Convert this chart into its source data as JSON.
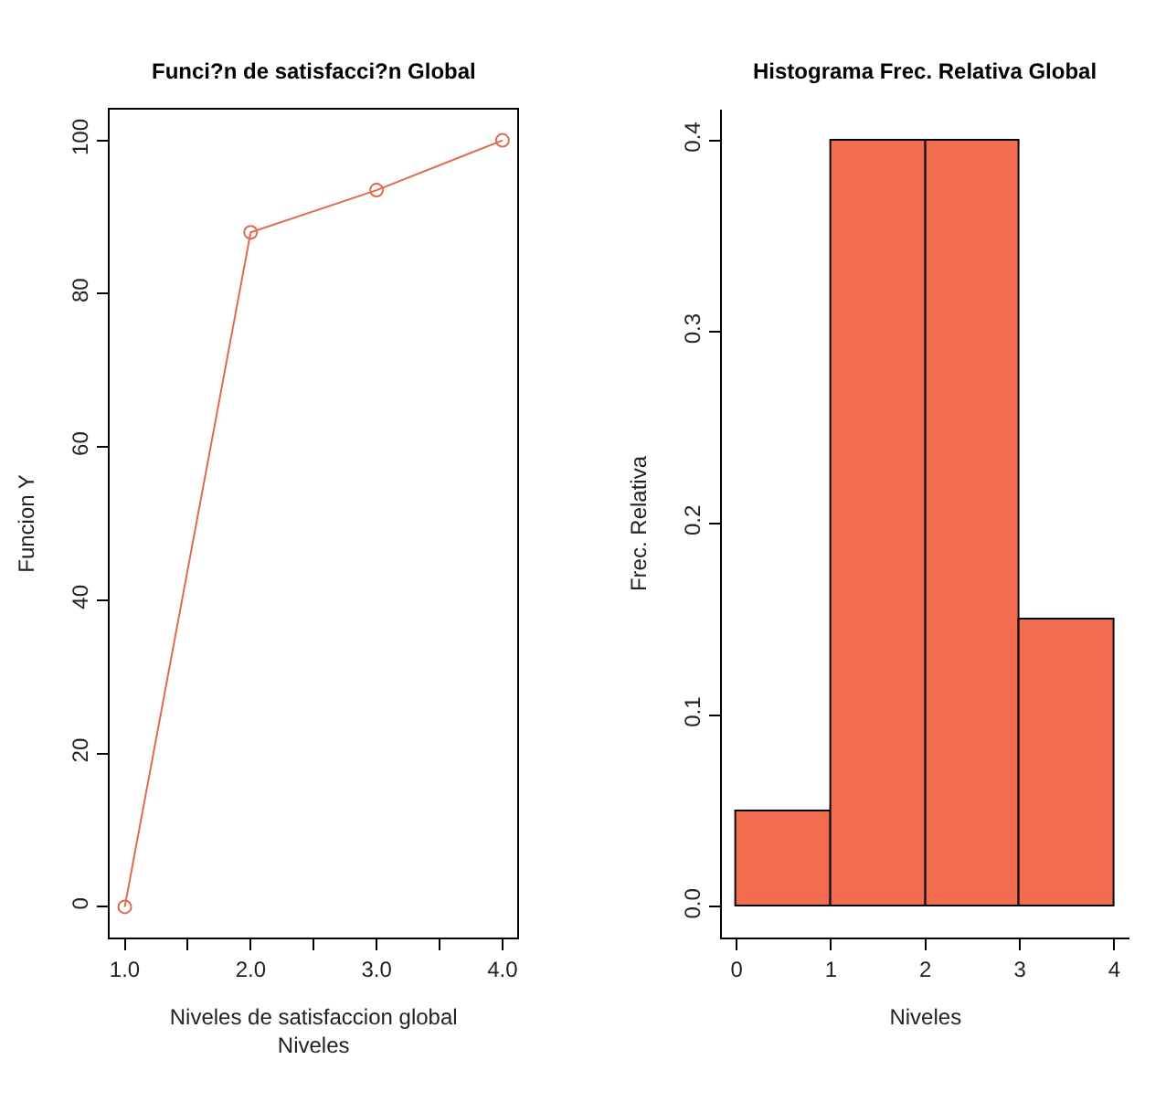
{
  "chart_data": [
    {
      "type": "line",
      "title": "Funci?n de satisfacci?n Global",
      "xlabel": "Niveles de satisfaccion global\nNiveles",
      "ylabel": "Funcion Y",
      "x": [
        1,
        2,
        3,
        4
      ],
      "series": [
        {
          "color": "#e0694f",
          "values": [
            0,
            88,
            93.5,
            100
          ]
        }
      ],
      "marker": "circle",
      "xlim": [
        0.88,
        4.12
      ],
      "xticks": [
        {
          "value": 1,
          "label": "1.0"
        },
        {
          "value": 1.5,
          "label": null
        },
        {
          "value": 2,
          "label": "2.0"
        },
        {
          "value": 2.5,
          "label": null
        },
        {
          "value": 3,
          "label": "3.0"
        },
        {
          "value": 3.5,
          "label": null
        },
        {
          "value": 4,
          "label": "4.0"
        }
      ],
      "ylim": [
        -4,
        104
      ],
      "yticks": [
        0,
        20,
        40,
        60,
        80,
        100
      ]
    },
    {
      "type": "histogram",
      "title": "Histograma Frec. Relativa Global",
      "xlabel": "Niveles",
      "ylabel": "Frec. Relativa",
      "bins": [
        0,
        1,
        2,
        3,
        4
      ],
      "values": [
        0.05,
        0.4,
        0.4,
        0.15
      ],
      "color": "#f26c50",
      "xlim": [
        -0.16,
        4.16
      ],
      "xticks": [
        0,
        1,
        2,
        3,
        4
      ],
      "ylim": [
        -0.016,
        0.416
      ],
      "yticks": [
        {
          "value": 0,
          "label": "0.0"
        },
        0.1,
        0.2,
        0.3,
        0.4
      ]
    }
  ]
}
